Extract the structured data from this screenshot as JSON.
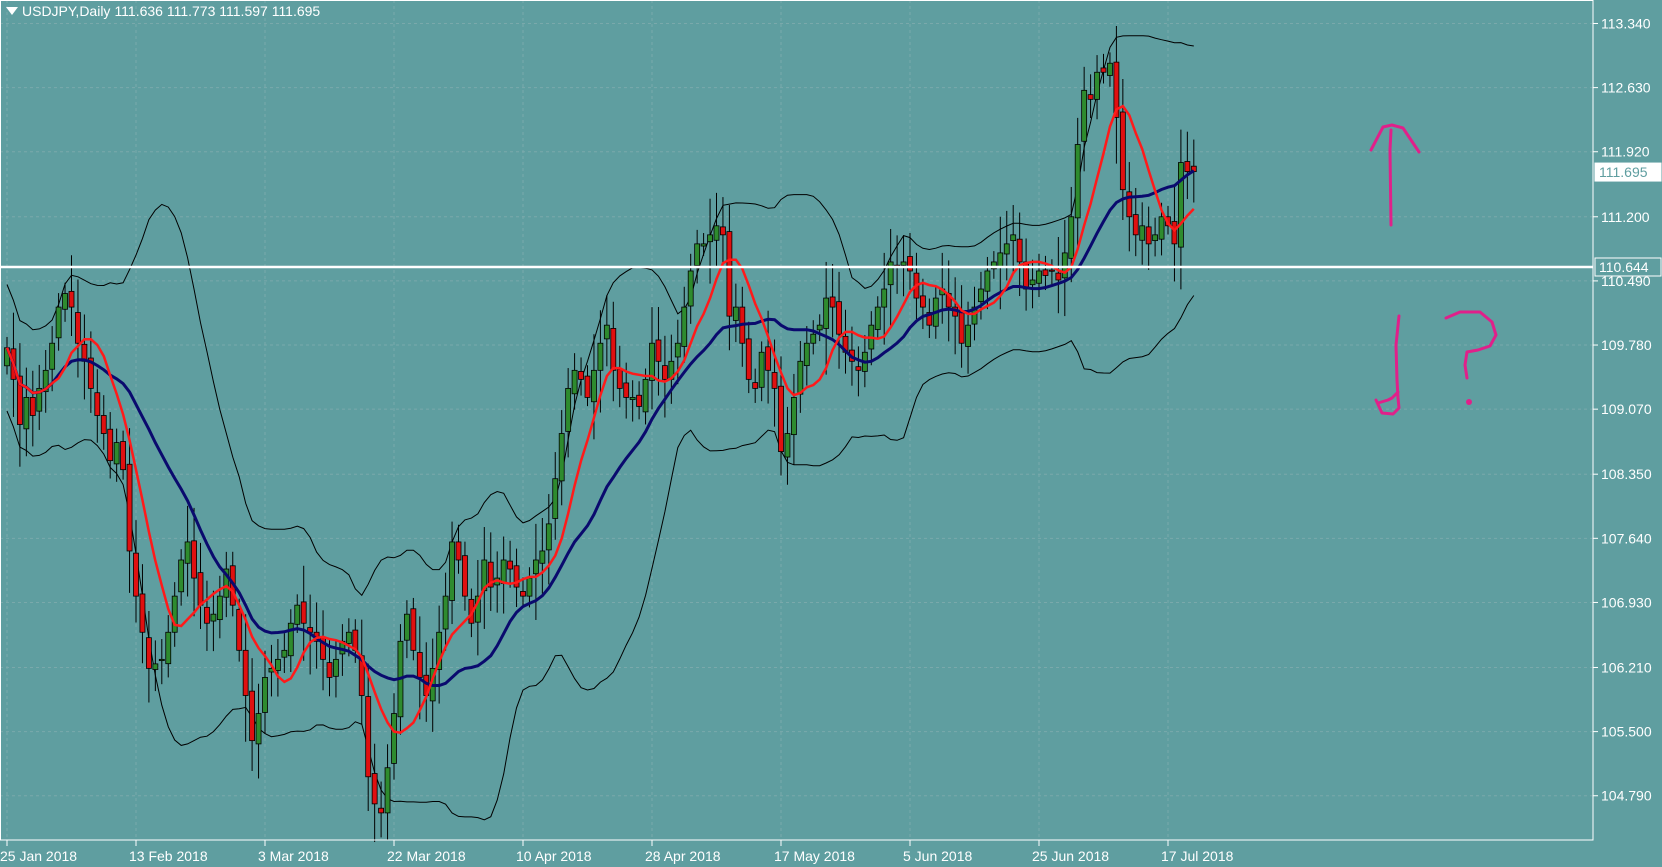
{
  "header": {
    "symbol_timeframe": "USDJPY,Daily",
    "ohlc": "111.636 111.773 111.597 111.695"
  },
  "colors": {
    "background": "#5f9ea0",
    "bull_candle": "#2e8b2e",
    "bear_candle": "#e01010",
    "ma_fast": "#ff1a1a",
    "ma_slow": "#0a0a6e",
    "bollinger": "#000000",
    "grid": "#7aa9ab",
    "horizontal_level": "#ffffff",
    "annotation": "#e0208a"
  },
  "chart_data": {
    "type": "candlestick",
    "symbol": "USDJPY",
    "timeframe": "Daily",
    "ylim": [
      104.3,
      113.6
    ],
    "y_ticks": [
      "113.340",
      "112.630",
      "111.920",
      "111.200",
      "110.490",
      "109.780",
      "109.070",
      "108.350",
      "107.640",
      "106.930",
      "106.210",
      "105.500",
      "104.790"
    ],
    "x_ticks": [
      {
        "label": "25 Jan 2018",
        "bar": 0
      },
      {
        "label": "13 Feb 2018",
        "bar": 20
      },
      {
        "label": "3 Mar 2018",
        "bar": 40
      },
      {
        "label": "22 Mar 2018",
        "bar": 60
      },
      {
        "label": "10 Apr 2018",
        "bar": 80
      },
      {
        "label": "28 Apr 2018",
        "bar": 100
      },
      {
        "label": "17 May 2018",
        "bar": 120
      },
      {
        "label": "5 Jun 2018",
        "bar": 140
      },
      {
        "label": "25 Jun 2018",
        "bar": 160
      },
      {
        "label": "17 Jul 2018",
        "bar": 180
      }
    ],
    "current_price": {
      "label": "111.695",
      "value": 111.695
    },
    "horizontal_level": {
      "label": "110.644",
      "value": 110.644
    },
    "grid": true,
    "closes": [
      109.75,
      109.4,
      108.9,
      109.2,
      109.0,
      109.3,
      109.5,
      109.8,
      110.2,
      110.35,
      110.2,
      109.8,
      109.6,
      109.3,
      109.0,
      108.8,
      108.5,
      108.7,
      108.4,
      107.5,
      107.0,
      106.6,
      106.2,
      106.25,
      106.3,
      106.6,
      107.0,
      107.4,
      107.6,
      107.2,
      106.9,
      106.7,
      106.8,
      107.0,
      107.3,
      106.9,
      106.4,
      105.9,
      105.4,
      105.7,
      106.1,
      106.2,
      106.3,
      106.4,
      106.7,
      106.9,
      106.7,
      106.6,
      106.5,
      106.3,
      106.1,
      106.3,
      106.5,
      106.6,
      106.4,
      105.9,
      105.0,
      104.7,
      104.6,
      105.1,
      105.7,
      106.5,
      106.8,
      106.4,
      106.1,
      105.9,
      106.2,
      106.6,
      107.0,
      107.6,
      107.4,
      107.0,
      106.7,
      107.0,
      107.4,
      107.1,
      107.2,
      107.4,
      107.3,
      107.1,
      107.0,
      107.2,
      107.4,
      107.5,
      107.8,
      108.3,
      108.8,
      109.3,
      109.5,
      109.4,
      109.2,
      109.5,
      109.8,
      110.0,
      109.5,
      109.3,
      109.2,
      109.2,
      109.1,
      109.4,
      109.8,
      109.6,
      109.4,
      109.6,
      109.8,
      110.2,
      110.6,
      110.9,
      110.9,
      111.0,
      111.1,
      111.0,
      110.1,
      110.2,
      109.8,
      109.4,
      109.3,
      109.7,
      109.5,
      109.3,
      108.6,
      108.8,
      109.2,
      109.6,
      109.8,
      109.9,
      110.0,
      110.3,
      110.2,
      109.9,
      109.7,
      109.6,
      109.5,
      109.7,
      110.0,
      110.2,
      110.4,
      110.7,
      110.65,
      110.7,
      110.6,
      110.3,
      110.2,
      110.0,
      110.3,
      110.4,
      110.2,
      110.1,
      109.8,
      110.0,
      110.2,
      110.4,
      110.6,
      110.7,
      110.8,
      110.9,
      111.0,
      110.7,
      110.4,
      110.5,
      110.6,
      110.55,
      110.6,
      110.5,
      110.8,
      111.2,
      112.0,
      112.6,
      112.5,
      112.8,
      112.8,
      112.9,
      112.3,
      111.5,
      111.2,
      111.0,
      111.1,
      110.9,
      111.0,
      111.2,
      111.1,
      110.9,
      111.8,
      111.7,
      111.7
    ]
  },
  "annotations": {
    "up_arrow": "up-arrow",
    "down_arrow": "down-arrow",
    "question_mark": "question-mark"
  }
}
